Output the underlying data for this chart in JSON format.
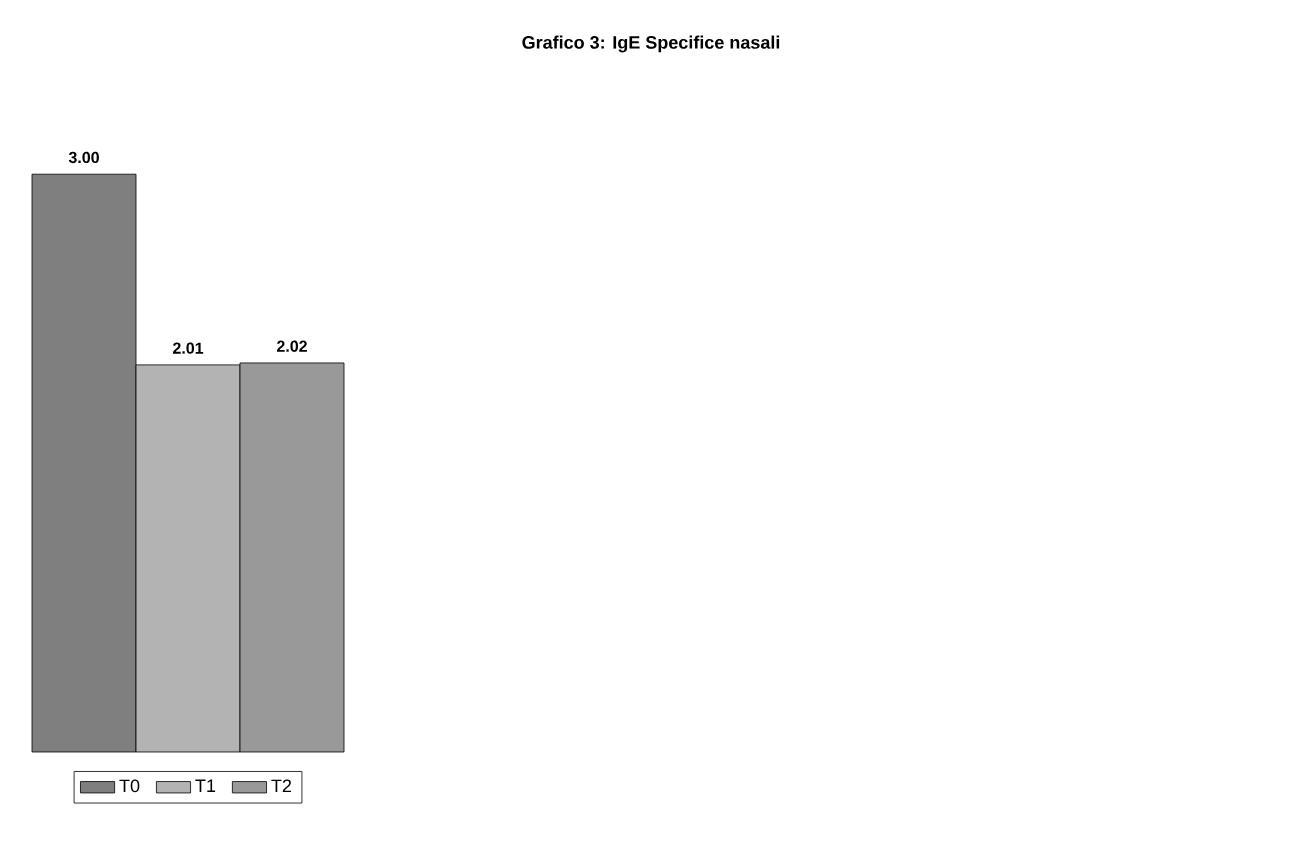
{
  "chart_data": {
    "type": "bar",
    "title": "Grafico 3: IgE Specifice nasali",
    "categories": [
      null
    ],
    "series": [
      {
        "name": "T0",
        "color": "#7f7f7f",
        "values": [
          3.0
        ],
        "value_labels": [
          "3.00"
        ]
      },
      {
        "name": "T1",
        "color": "#b3b3b3",
        "values": [
          2.01
        ],
        "value_labels": [
          "2.01"
        ]
      },
      {
        "name": "T2",
        "color": "#999999",
        "values": [
          2.02
        ],
        "value_labels": [
          "2.02"
        ]
      }
    ],
    "legend": "bottom"
  }
}
